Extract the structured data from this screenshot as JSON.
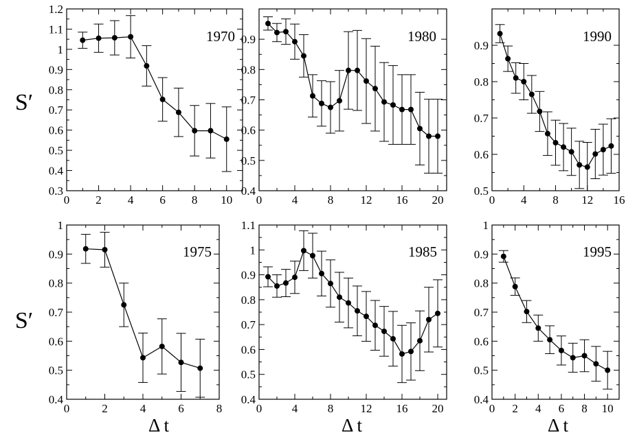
{
  "figure": {
    "ylabel": "S′",
    "xlabel": "Δ t"
  },
  "chart_data": [
    {
      "type": "line",
      "title": "1970",
      "xlim": [
        0,
        11
      ],
      "ylim": [
        0.3,
        1.2
      ],
      "xticks": [
        0,
        2,
        4,
        6,
        8,
        10
      ],
      "yticks": [
        0.3,
        0.4,
        0.5,
        0.6,
        0.7,
        0.8,
        0.9,
        1,
        1.1,
        1.2
      ],
      "ytick_labels": [
        "0.3",
        "0.4",
        "0.5",
        "0.6",
        "0.7",
        "0.8",
        "0.9",
        "1",
        "1.1",
        "1.2"
      ],
      "x": [
        1,
        2,
        3,
        4,
        5,
        6,
        7,
        8,
        9,
        10
      ],
      "y": [
        1.045,
        1.055,
        1.057,
        1.062,
        0.918,
        0.752,
        0.688,
        0.597,
        0.597,
        0.555
      ],
      "err": [
        0.04,
        0.07,
        0.085,
        0.105,
        0.1,
        0.108,
        0.12,
        0.125,
        0.135,
        0.16
      ]
    },
    {
      "type": "line",
      "title": "1980",
      "xlim": [
        0,
        21
      ],
      "ylim": [
        0.4,
        1.0
      ],
      "xticks": [
        0,
        4,
        8,
        12,
        16,
        20
      ],
      "yticks": [
        0.4,
        0.5,
        0.6,
        0.7,
        0.8,
        0.9
      ],
      "ytick_labels": [
        "0.4",
        "0.5",
        "0.6",
        "0.7",
        "0.8",
        "0.9"
      ],
      "x": [
        1,
        2,
        3,
        4,
        5,
        6,
        7,
        8,
        9,
        10,
        11,
        12,
        13,
        14,
        15,
        16,
        17,
        18,
        19,
        20
      ],
      "y": [
        0.952,
        0.922,
        0.925,
        0.892,
        0.845,
        0.713,
        0.688,
        0.675,
        0.697,
        0.797,
        0.797,
        0.762,
        0.737,
        0.693,
        0.683,
        0.668,
        0.668,
        0.605,
        0.58,
        0.58
      ],
      "err": [
        0.022,
        0.03,
        0.042,
        0.058,
        0.07,
        0.07,
        0.075,
        0.085,
        0.1,
        0.128,
        0.132,
        0.14,
        0.14,
        0.13,
        0.13,
        0.115,
        0.115,
        0.12,
        0.122,
        0.122
      ]
    },
    {
      "type": "line",
      "title": "1990",
      "xlim": [
        0,
        16
      ],
      "ylim": [
        0.5,
        1.0
      ],
      "xticks": [
        0,
        4,
        8,
        12,
        16
      ],
      "yticks": [
        0.5,
        0.6,
        0.7,
        0.8,
        0.9
      ],
      "ytick_labels": [
        "0.5",
        "0.6",
        "0.7",
        "0.8",
        "0.9"
      ],
      "x": [
        1,
        2,
        3,
        4,
        5,
        6,
        7,
        8,
        9,
        10,
        11,
        12,
        13,
        14,
        15
      ],
      "y": [
        0.932,
        0.863,
        0.81,
        0.8,
        0.765,
        0.718,
        0.657,
        0.632,
        0.62,
        0.607,
        0.571,
        0.565,
        0.601,
        0.613,
        0.623
      ],
      "err": [
        0.025,
        0.035,
        0.042,
        0.05,
        0.052,
        0.055,
        0.06,
        0.062,
        0.065,
        0.065,
        0.065,
        0.068,
        0.068,
        0.07,
        0.075
      ]
    },
    {
      "type": "line",
      "title": "1975",
      "xlim": [
        0,
        8
      ],
      "ylim": [
        0.4,
        1.0
      ],
      "xticks": [
        0,
        2,
        4,
        6,
        8
      ],
      "yticks": [
        0.4,
        0.5,
        0.6,
        0.7,
        0.8,
        0.9,
        1
      ],
      "ytick_labels": [
        "0.4",
        "0.5",
        "0.6",
        "0.7",
        "0.8",
        "0.9",
        "1"
      ],
      "x": [
        1,
        2,
        3,
        4,
        5,
        6,
        7
      ],
      "y": [
        0.918,
        0.915,
        0.725,
        0.543,
        0.582,
        0.527,
        0.507
      ],
      "err": [
        0.05,
        0.06,
        0.075,
        0.085,
        0.095,
        0.1,
        0.1
      ]
    },
    {
      "type": "line",
      "title": "1985",
      "xlim": [
        0,
        21
      ],
      "ylim": [
        0.4,
        1.1
      ],
      "xticks": [
        0,
        4,
        8,
        12,
        16,
        20
      ],
      "yticks": [
        0.4,
        0.5,
        0.6,
        0.7,
        0.8,
        0.9,
        1,
        1.1
      ],
      "ytick_labels": [
        "0.4",
        "0.5",
        "0.6",
        "0.7",
        "0.8",
        "0.9",
        "1",
        "1.1"
      ],
      "x": [
        1,
        2,
        3,
        4,
        5,
        6,
        7,
        8,
        9,
        10,
        11,
        12,
        13,
        14,
        15,
        16,
        17,
        18,
        19,
        20
      ],
      "y": [
        0.892,
        0.855,
        0.867,
        0.89,
        0.997,
        0.977,
        0.905,
        0.865,
        0.81,
        0.787,
        0.755,
        0.733,
        0.697,
        0.673,
        0.643,
        0.582,
        0.592,
        0.635,
        0.72,
        0.745
      ],
      "err": [
        0.04,
        0.045,
        0.055,
        0.065,
        0.08,
        0.09,
        0.09,
        0.095,
        0.1,
        0.1,
        0.1,
        0.1,
        0.1,
        0.1,
        0.11,
        0.115,
        0.115,
        0.12,
        0.13,
        0.135
      ]
    },
    {
      "type": "line",
      "title": "1995",
      "xlim": [
        0,
        11
      ],
      "ylim": [
        0.4,
        1.0
      ],
      "xticks": [
        0,
        2,
        4,
        6,
        8,
        10
      ],
      "yticks": [
        0.4,
        0.5,
        0.6,
        0.7,
        0.8,
        0.9,
        1
      ],
      "ytick_labels": [
        "0.4",
        "0.5",
        "0.6",
        "0.7",
        "0.8",
        "0.9",
        "1"
      ],
      "x": [
        1,
        2,
        3,
        4,
        5,
        6,
        7,
        8,
        9,
        10
      ],
      "y": [
        0.892,
        0.788,
        0.702,
        0.645,
        0.605,
        0.568,
        0.543,
        0.55,
        0.522,
        0.5
      ],
      "err": [
        0.02,
        0.03,
        0.038,
        0.045,
        0.048,
        0.05,
        0.05,
        0.055,
        0.06,
        0.065
      ]
    }
  ]
}
